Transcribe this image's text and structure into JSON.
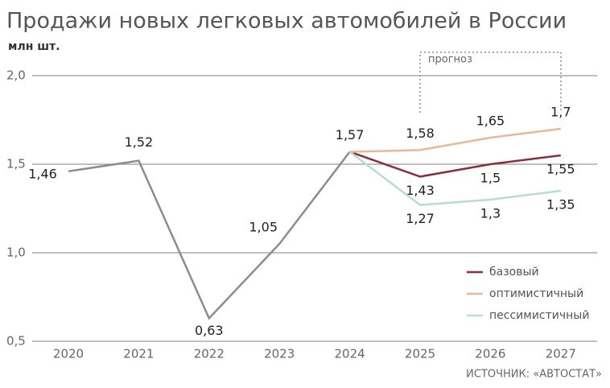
{
  "chart_data": {
    "type": "line",
    "title": "Продажи новых легковых автомобилей в России",
    "subtitle": "млн шт.",
    "categories": [
      "2020",
      "2021",
      "2022",
      "2023",
      "2024",
      "2025",
      "2026",
      "2027"
    ],
    "series": [
      {
        "color": "#8c8c8c",
        "values": [
          1.46,
          1.52,
          0.63,
          1.05,
          1.57,
          null,
          null,
          null
        ],
        "value_labels": [
          "1,46",
          "1,52",
          "0,63",
          "1,05",
          "1,57",
          null,
          null,
          null
        ]
      },
      {
        "name": "базовый",
        "color": "#8b2e3c",
        "values": [
          null,
          null,
          null,
          null,
          1.57,
          1.43,
          1.5,
          1.55
        ],
        "value_labels": [
          null,
          null,
          null,
          null,
          null,
          "1,43",
          "1,5",
          "1,55"
        ]
      },
      {
        "name": "оптимистичный",
        "color": "#e8b898",
        "values": [
          null,
          null,
          null,
          null,
          1.57,
          1.58,
          1.65,
          1.7
        ],
        "value_labels": [
          null,
          null,
          null,
          null,
          null,
          "1,58",
          "1,65",
          "1,7"
        ]
      },
      {
        "name": "пессимистичный",
        "color": "#b7dcd6",
        "values": [
          null,
          null,
          null,
          null,
          1.57,
          1.27,
          1.3,
          1.35
        ],
        "value_labels": [
          null,
          null,
          null,
          null,
          null,
          "1,27",
          "1,3",
          "1,35"
        ]
      }
    ],
    "ylim": [
      0.5,
      2.0
    ],
    "yticks": [
      {
        "value": 0.5,
        "label": "0,5"
      },
      {
        "value": 1.0,
        "label": "1,0"
      },
      {
        "value": 1.5,
        "label": "1,5"
      },
      {
        "value": 2.0,
        "label": "2,0"
      }
    ],
    "grid": true,
    "legend": "lower right",
    "annotation": "прогноз",
    "source": "ИСТОЧНИК: «АВТОСТАТ»"
  }
}
